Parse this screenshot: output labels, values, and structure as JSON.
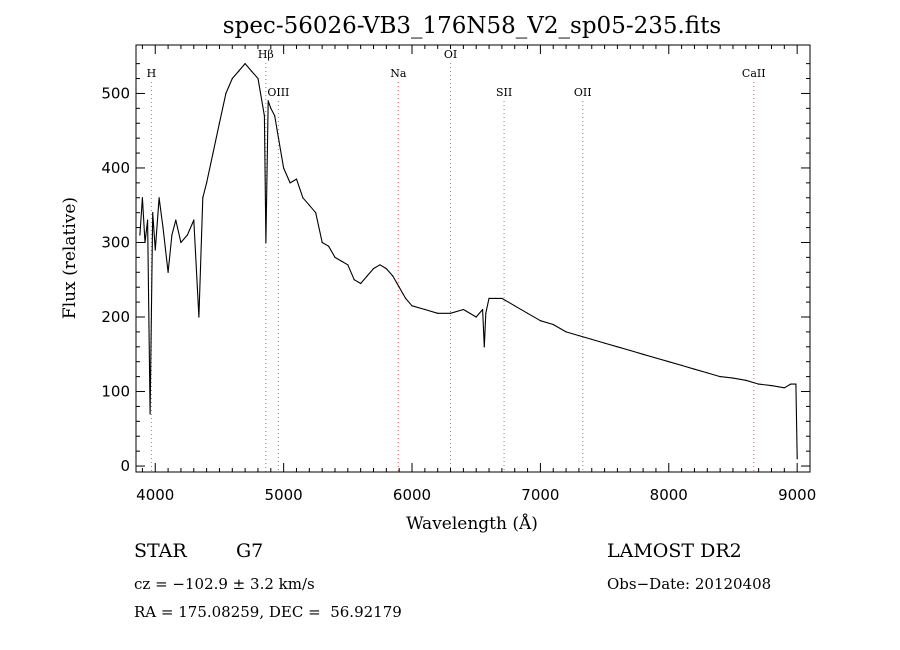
{
  "chart_data": {
    "type": "line",
    "title": "spec-56026-VB3_176N58_V2_sp05-235.fits",
    "xlabel": "Wavelength (Å)",
    "ylabel": "Flux (relative)",
    "xlim": [
      3850,
      9100
    ],
    "ylim": [
      -8,
      565
    ],
    "xticks": [
      4000,
      5000,
      6000,
      7000,
      8000,
      9000
    ],
    "yticks": [
      0,
      100,
      200,
      300,
      400,
      500
    ],
    "line_color": "#000000",
    "marker_color": "#e06060",
    "grid": false,
    "series": [
      {
        "x": [
          3880,
          3900,
          3920,
          3940,
          3960,
          3980,
          4000,
          4030,
          4060,
          4100,
          4130,
          4160,
          4200,
          4250,
          4300,
          4340,
          4370,
          4400,
          4450,
          4500,
          4550,
          4600,
          4650,
          4700,
          4750,
          4800,
          4850,
          4862,
          4880,
          4900,
          4930,
          4960,
          5000,
          5050,
          5100,
          5150,
          5200,
          5250,
          5300,
          5350,
          5400,
          5450,
          5500,
          5550,
          5600,
          5650,
          5700,
          5750,
          5800,
          5850,
          5900,
          5950,
          6000,
          6100,
          6200,
          6300,
          6400,
          6500,
          6550,
          6563,
          6575,
          6600,
          6650,
          6700,
          6800,
          6900,
          7000,
          7100,
          7200,
          7300,
          7400,
          7500,
          7600,
          7700,
          7800,
          7900,
          8000,
          8100,
          8200,
          8300,
          8400,
          8500,
          8600,
          8700,
          8800,
          8900,
          8950,
          8990,
          9000
        ],
        "y": [
          310,
          360,
          300,
          330,
          70,
          340,
          290,
          360,
          320,
          260,
          310,
          330,
          300,
          310,
          330,
          200,
          360,
          380,
          420,
          460,
          500,
          520,
          530,
          540,
          530,
          520,
          470,
          300,
          490,
          480,
          470,
          440,
          400,
          380,
          385,
          360,
          350,
          340,
          300,
          295,
          280,
          275,
          270,
          250,
          245,
          255,
          265,
          270,
          265,
          255,
          240,
          225,
          215,
          210,
          205,
          205,
          210,
          200,
          210,
          160,
          205,
          225,
          225,
          225,
          215,
          205,
          195,
          190,
          180,
          175,
          170,
          165,
          160,
          155,
          150,
          145,
          140,
          135,
          130,
          125,
          120,
          118,
          115,
          110,
          108,
          105,
          110,
          110,
          10
        ]
      }
    ],
    "markers": [
      {
        "label": "H",
        "x": 3970,
        "row": 1
      },
      {
        "label": "Hβ",
        "x": 4861,
        "row": 0
      },
      {
        "label": "OIII",
        "x": 4959,
        "row": 2
      },
      {
        "label": "Na",
        "x": 5893,
        "row": 1
      },
      {
        "label": "OI",
        "x": 6300,
        "row": 0
      },
      {
        "label": "SII",
        "x": 6717,
        "row": 2
      },
      {
        "label": "OII",
        "x": 7330,
        "row": 2
      },
      {
        "label": "CaII",
        "x": 8662,
        "row": 1
      }
    ]
  },
  "info": {
    "object_type": "STAR",
    "subclass": "G7",
    "survey": "LAMOST DR2",
    "redshift": "cz = −102.9 ± 3.2 km/s",
    "obs_date": "Obs−Date: 20120408",
    "coords": "RA = 175.08259, DEC =  56.92179"
  }
}
